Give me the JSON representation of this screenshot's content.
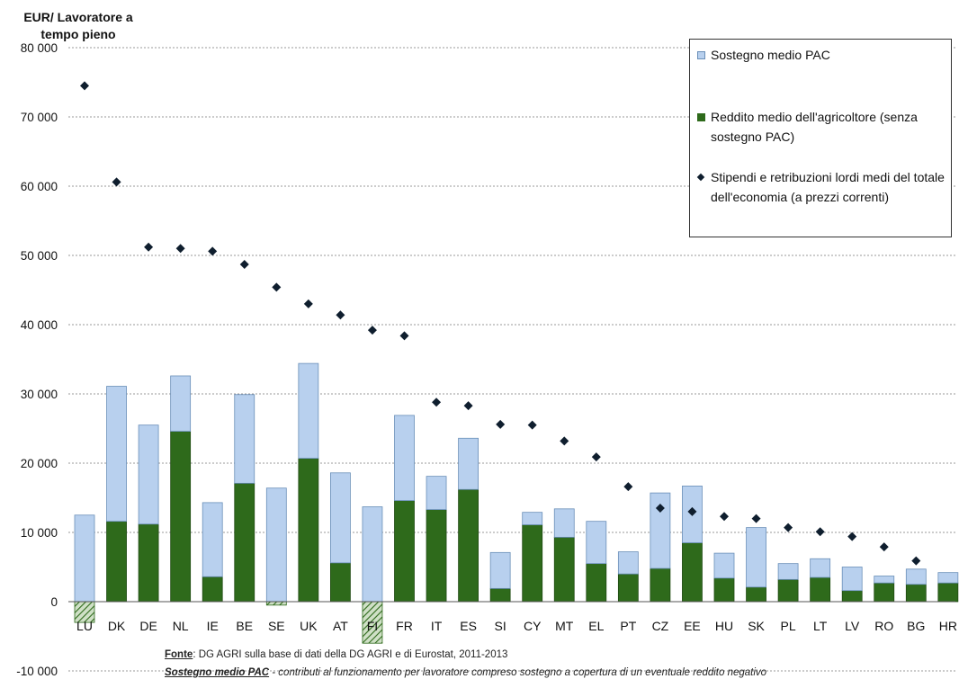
{
  "chart_data": {
    "type": "bar",
    "ylabel": "EUR/ Lavoratore a tempo pieno",
    "ylim": [
      -10000,
      80000
    ],
    "yticks": [
      80000,
      70000,
      60000,
      50000,
      40000,
      30000,
      20000,
      10000,
      0,
      -10000
    ],
    "ytick_labels": [
      "80 000",
      "70 000",
      "60 000",
      "50 000",
      "40 000",
      "30 000",
      "20 000",
      "10 000",
      "0",
      "-10 000"
    ],
    "gridlines": true,
    "legend_position": "top-right",
    "categories": [
      "LU",
      "DK",
      "DE",
      "NL",
      "IE",
      "BE",
      "SE",
      "UK",
      "AT",
      "FI",
      "FR",
      "IT",
      "ES",
      "SI",
      "CY",
      "MT",
      "EL",
      "PT",
      "CZ",
      "EE",
      "HU",
      "SK",
      "PL",
      "LT",
      "LV",
      "RO",
      "BG",
      "HR"
    ],
    "series": [
      {
        "name": "Sostegno medio PAC",
        "type": "stacked-bar",
        "color": "#b8d0ee",
        "values": [
          12500,
          19500,
          14300,
          8000,
          10700,
          12800,
          16400,
          13700,
          13000,
          13700,
          12300,
          4800,
          7400,
          5200,
          1800,
          4100,
          6100,
          3200,
          10900,
          8200,
          3600,
          8600,
          2300,
          2700,
          3400,
          1000,
          2200,
          1500
        ]
      },
      {
        "name": "Reddito medio dell'agricoltore (senza sostegno PAC)",
        "type": "stacked-bar",
        "color": "#2e6a1b",
        "negative_fill": "hatched",
        "values": [
          -3000,
          11600,
          11200,
          24600,
          3600,
          17100,
          -500,
          20700,
          5600,
          -6000,
          14600,
          13300,
          16200,
          1900,
          11100,
          9300,
          5500,
          4000,
          4800,
          8500,
          3400,
          2100,
          3200,
          3500,
          1600,
          2700,
          2500,
          2700
        ]
      },
      {
        "name": "Stipendi e retribuzioni lordi medi del totale dell'economia (a prezzi correnti)",
        "type": "scatter",
        "marker": "diamond",
        "color": "#0f1e2e",
        "values": [
          74500,
          60600,
          51200,
          51000,
          50600,
          48700,
          45400,
          43000,
          41400,
          39200,
          38400,
          28800,
          28300,
          25600,
          25500,
          23200,
          20900,
          16600,
          13500,
          13000,
          12300,
          12000,
          10700,
          10100,
          9400,
          7900,
          5900,
          null
        ]
      }
    ]
  },
  "legend": {
    "items": [
      {
        "label": "Sostegno medio PAC",
        "swatch": "#b8d0ee"
      },
      {
        "label": "Reddito medio dell'agricoltore (senza sostegno PAC)",
        "swatch": "#2e6a1b"
      },
      {
        "label": "Stipendi e retribuzioni lordi medi del totale dell'economia (a prezzi correnti)",
        "swatch": "#0f1e2e"
      }
    ]
  },
  "footer": {
    "source_label": "Fonte",
    "source_text": ": DG AGRI sulla base di dati della DG AGRI e di Eurostat, 2011-2013",
    "note_label": "Sostegno medio PAC",
    "note_text": " - contributi al funzionamento per lavoratore compreso sostegno a copertura di un eventuale reddito negativo"
  }
}
